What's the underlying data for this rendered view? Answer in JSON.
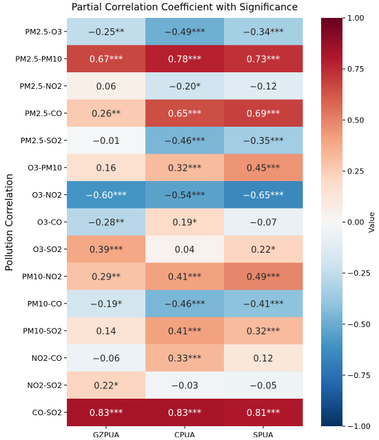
{
  "chart_data": {
    "type": "heatmap",
    "title": "Partial Correlation Coefficient with Significance",
    "xlabel": "",
    "ylabel": "Pollution Correlation",
    "columns": [
      "GZPUA",
      "CPUA",
      "SPUA"
    ],
    "rows": [
      "PM2.5-O3",
      "PM2.5-PM10",
      "PM2.5-NO2",
      "PM2.5-CO",
      "PM2.5-SO2",
      "O3-PM10",
      "O3-NO2",
      "O3-CO",
      "O3-SO2",
      "PM10-NO2",
      "PM10-CO",
      "PM10-SO2",
      "NO2-CO",
      "NO2-SO2",
      "CO-SO2"
    ],
    "values": [
      [
        -0.25,
        -0.49,
        -0.34
      ],
      [
        0.67,
        0.78,
        0.73
      ],
      [
        0.06,
        -0.2,
        -0.12
      ],
      [
        0.26,
        0.65,
        0.69
      ],
      [
        -0.01,
        -0.46,
        -0.35
      ],
      [
        0.16,
        0.32,
        0.45
      ],
      [
        -0.6,
        -0.54,
        -0.65
      ],
      [
        -0.28,
        0.19,
        -0.07
      ],
      [
        0.39,
        0.04,
        0.22
      ],
      [
        0.29,
        0.41,
        0.49
      ],
      [
        -0.19,
        -0.46,
        -0.41
      ],
      [
        0.14,
        0.41,
        0.32
      ],
      [
        -0.06,
        0.33,
        0.12
      ],
      [
        0.22,
        -0.03,
        -0.05
      ],
      [
        0.83,
        0.83,
        0.81
      ]
    ],
    "annotations": [
      [
        "−0.25**",
        "−0.49***",
        "−0.34***"
      ],
      [
        "0.67***",
        "0.78***",
        "0.73***"
      ],
      [
        "0.06",
        "−0.20*",
        "−0.12"
      ],
      [
        "0.26**",
        "0.65***",
        "0.69***"
      ],
      [
        "−0.01",
        "−0.46***",
        "−0.35***"
      ],
      [
        "0.16",
        "0.32***",
        "0.45***"
      ],
      [
        "−0.60***",
        "−0.54***",
        "−0.65***"
      ],
      [
        "−0.28**",
        "0.19*",
        "−0.07"
      ],
      [
        "0.39***",
        "0.04",
        "0.22*"
      ],
      [
        "0.29**",
        "0.41***",
        "0.49***"
      ],
      [
        "−0.19*",
        "−0.46***",
        "−0.41***"
      ],
      [
        "0.14",
        "0.41***",
        "0.32***"
      ],
      [
        "−0.06",
        "0.33***",
        "0.12"
      ],
      [
        "0.22*",
        "−0.03",
        "−0.05"
      ],
      [
        "0.83***",
        "0.83***",
        "0.81***"
      ]
    ],
    "colorbar": {
      "label": "Value",
      "range": [
        -1.0,
        1.0
      ],
      "ticks": [
        1.0,
        0.75,
        0.5,
        0.25,
        0.0,
        -0.25,
        -0.5,
        -0.75,
        -1.0
      ],
      "tick_labels": [
        "1.00",
        "0.75",
        "0.50",
        "0.25",
        "0.00",
        "−0.25",
        "−0.50",
        "−0.75",
        "−1.00"
      ],
      "colormap": "RdBu_r",
      "stops": [
        "#053061",
        "#2166ac",
        "#4393c3",
        "#92c5de",
        "#d1e5f0",
        "#f7f7f7",
        "#fddbc7",
        "#f4a582",
        "#d6604d",
        "#b2182b",
        "#67001f"
      ]
    }
  }
}
